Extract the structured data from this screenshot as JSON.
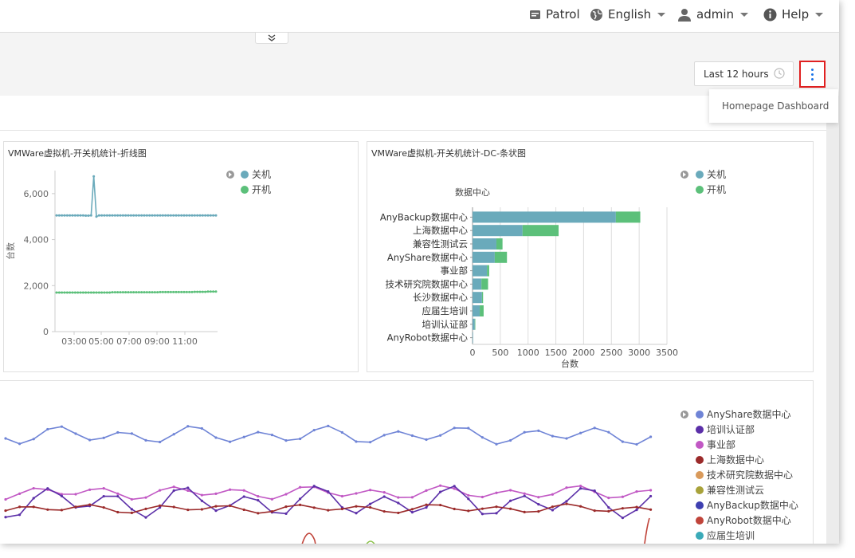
{
  "topbar": {
    "patrol_label": "Patrol",
    "language_label": "English",
    "user_label": "admin",
    "help_label": "Help"
  },
  "toolbar": {
    "time_range": "Last 12 hours",
    "menu_item": "Homepage Dashboard"
  },
  "panels": {
    "line": {
      "title": "VMWare虚拟机-开关机统计-折线图"
    },
    "bar": {
      "title": "VMWare虚拟机-开关机统计-DC-条状图"
    }
  },
  "chart_data": [
    {
      "type": "line",
      "title": "VMWare虚拟机-开关机统计-折线图",
      "xlabel": "",
      "ylabel": "台数",
      "ylim": [
        0,
        7000
      ],
      "y_ticks": [
        "0",
        "2,000",
        "4,000",
        "6,000"
      ],
      "x_ticks": [
        "03:00",
        "05:00",
        "07:00",
        "09:00",
        "11:00"
      ],
      "legend": [
        "关机",
        "开机"
      ],
      "series": [
        {
          "name": "关机",
          "color": "#6aaabb",
          "values": [
            5050,
            5050,
            5050,
            5050,
            5050,
            5050,
            5050,
            5050,
            5050,
            5050,
            5050,
            5040,
            5040,
            5050,
            6750,
            5000,
            5050,
            5050,
            5050,
            5050,
            5050,
            5050,
            5050,
            5050,
            5050,
            5050,
            5050,
            5050,
            5050,
            5050,
            5050,
            5050,
            5050,
            5050,
            5050,
            5050,
            5050,
            5050,
            5050,
            5050,
            5050,
            5050,
            5050,
            5050,
            5050,
            5050,
            5050,
            5050,
            5050,
            5050,
            5050,
            5050,
            5050,
            5050,
            5050,
            5050,
            5050,
            5050,
            5050,
            5050,
            5050
          ]
        },
        {
          "name": "开机",
          "color": "#5cc07a",
          "values": [
            1700,
            1700,
            1700,
            1700,
            1700,
            1700,
            1700,
            1700,
            1700,
            1700,
            1700,
            1700,
            1700,
            1700,
            1700,
            1700,
            1700,
            1700,
            1700,
            1700,
            1700,
            1710,
            1710,
            1710,
            1710,
            1710,
            1710,
            1710,
            1710,
            1710,
            1710,
            1710,
            1710,
            1710,
            1710,
            1710,
            1710,
            1710,
            1710,
            1720,
            1720,
            1720,
            1720,
            1720,
            1720,
            1720,
            1720,
            1720,
            1720,
            1720,
            1720,
            1720,
            1730,
            1730,
            1730,
            1730,
            1730,
            1740,
            1740,
            1740,
            1740
          ]
        }
      ]
    },
    {
      "type": "bar",
      "orientation": "horizontal",
      "stacked": true,
      "title": "VMWare虚拟机-开关机统计-DC-条状图",
      "category_axis_label": "数据中心",
      "xlabel": "台数",
      "xlim": [
        0,
        3500
      ],
      "x_ticks": [
        "0",
        "500",
        "1000",
        "1500",
        "2000",
        "2500",
        "3000",
        "3500"
      ],
      "categories": [
        "AnyBackup数据中心",
        "上海数据中心",
        "兼容性测试云",
        "AnyShare数据中心",
        "事业部",
        "技术研究院数据中心",
        "长沙数据中心",
        "应届生培训",
        "培训认证部",
        "AnyRobot数据中心"
      ],
      "legend": [
        "关机",
        "开机"
      ],
      "series": [
        {
          "name": "关机",
          "color": "#6aaabb",
          "values": [
            2580,
            900,
            430,
            400,
            260,
            160,
            170,
            130,
            40,
            10
          ]
        },
        {
          "name": "开机",
          "color": "#5cc07a",
          "values": [
            440,
            650,
            110,
            220,
            40,
            120,
            20,
            70,
            10,
            0
          ]
        }
      ]
    },
    {
      "type": "line",
      "title": "",
      "legend": [
        "AnyShare数据中心",
        "培训认证部",
        "事业部",
        "上海数据中心",
        "技术研究院数据中心",
        "兼容性测试云",
        "AnyBackup数据中心",
        "AnyRobot数据中心",
        "应届生培训"
      ],
      "series": [
        {
          "name": "AnyShare数据中心",
          "color": "#6f84d6"
        },
        {
          "name": "培训认证部",
          "color": "#5b2fa8"
        },
        {
          "name": "事业部",
          "color": "#c158c4"
        },
        {
          "name": "上海数据中心",
          "color": "#9b2a2a"
        },
        {
          "name": "技术研究院数据中心",
          "color": "#d99a5b"
        },
        {
          "name": "兼容性测试云",
          "color": "#a8a23a"
        },
        {
          "name": "AnyBackup数据中心",
          "color": "#3e3fb0"
        },
        {
          "name": "AnyRobot数据中心",
          "color": "#c0443a"
        },
        {
          "name": "应届生培训",
          "color": "#3aaab8"
        }
      ]
    }
  ]
}
